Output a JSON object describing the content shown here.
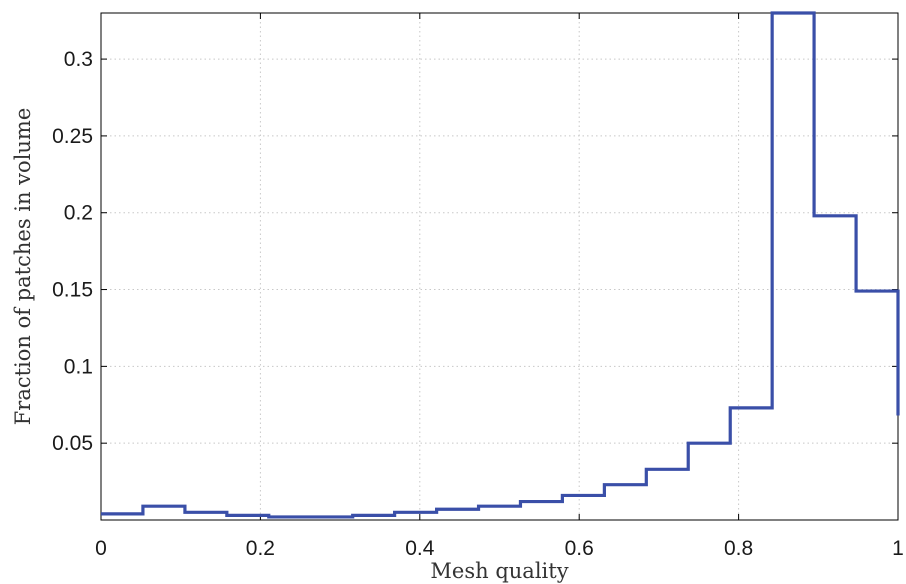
{
  "chart_data": {
    "type": "line",
    "step": true,
    "xlabel": "Mesh quality",
    "ylabel": "Fraction of patches in volume",
    "xlim": [
      0,
      1
    ],
    "ylim": [
      0,
      0.33
    ],
    "grid": true,
    "x_ticks": [
      "0",
      "0.2",
      "0.4",
      "0.6",
      "0.8",
      "1"
    ],
    "x_tick_values": [
      0,
      0.2,
      0.4,
      0.6,
      0.8,
      1
    ],
    "y_ticks": [
      "0.05",
      "0.1",
      "0.15",
      "0.2",
      "0.25",
      "0.3"
    ],
    "y_tick_values": [
      0.05,
      0.1,
      0.15,
      0.2,
      0.25,
      0.3
    ],
    "bin_edges": [
      0,
      0.0526,
      0.1053,
      0.1579,
      0.2105,
      0.2632,
      0.3158,
      0.3684,
      0.4211,
      0.4737,
      0.5263,
      0.5789,
      0.6316,
      0.6842,
      0.7368,
      0.7895,
      0.8421,
      0.8947,
      0.9474,
      1.0
    ],
    "series": [
      {
        "values": [
          0.004,
          0.009,
          0.005,
          0.003,
          0.002,
          0.002,
          0.003,
          0.005,
          0.007,
          0.009,
          0.012,
          0.016,
          0.023,
          0.033,
          0.05,
          0.073,
          0.33,
          0.198,
          0.149
        ],
        "end_value": 0.068,
        "color": "#3a4fa8"
      }
    ]
  }
}
